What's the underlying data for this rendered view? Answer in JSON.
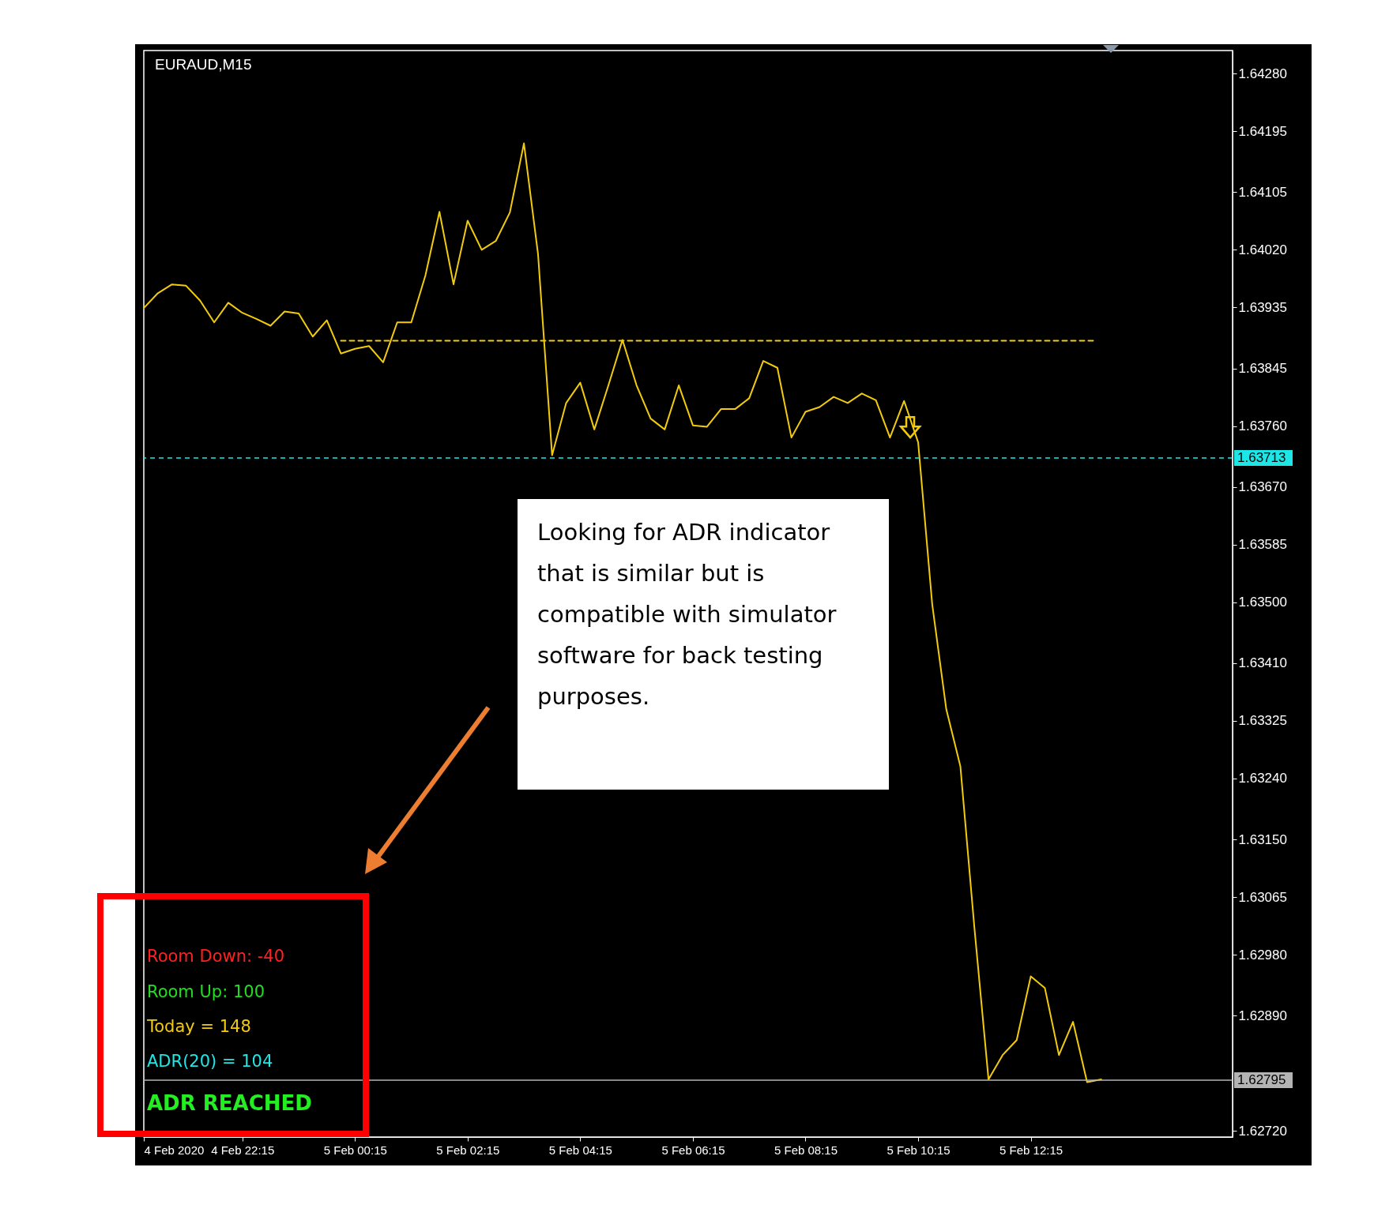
{
  "chart_data": {
    "type": "line",
    "title": "EURAUD,M15",
    "xlim": [
      "2020-02-04T20:30",
      "2020-02-05T15:50"
    ],
    "xticks": [
      {
        "value": "2020-02-04T20:30",
        "label": "4 Feb 2020"
      },
      {
        "value": "2020-02-04T22:15",
        "label": "4 Feb 22:15"
      },
      {
        "value": "2020-02-05T00:15",
        "label": "5 Feb 00:15"
      },
      {
        "value": "2020-02-05T02:15",
        "label": "5 Feb 02:15"
      },
      {
        "value": "2020-02-05T04:15",
        "label": "5 Feb 04:15"
      },
      {
        "value": "2020-02-05T06:15",
        "label": "5 Feb 06:15"
      },
      {
        "value": "2020-02-05T08:15",
        "label": "5 Feb 08:15"
      },
      {
        "value": "2020-02-05T10:15",
        "label": "5 Feb 10:15"
      },
      {
        "value": "2020-02-05T12:15",
        "label": "5 Feb 12:15"
      }
    ],
    "ylim": [
      1.62711,
      1.64314
    ],
    "yticks": [
      {
        "value": 1.6428,
        "label": "1.64280"
      },
      {
        "value": 1.64195,
        "label": "1.64195"
      },
      {
        "value": 1.64105,
        "label": "1.64105"
      },
      {
        "value": 1.6402,
        "label": "1.64020"
      },
      {
        "value": 1.63935,
        "label": "1.63935"
      },
      {
        "value": 1.63845,
        "label": "1.63845"
      },
      {
        "value": 1.6376,
        "label": "1.63760"
      },
      {
        "value": 1.6367,
        "label": "1.63670"
      },
      {
        "value": 1.63585,
        "label": "1.63585"
      },
      {
        "value": 1.635,
        "label": "1.63500"
      },
      {
        "value": 1.6341,
        "label": "1.63410"
      },
      {
        "value": 1.63325,
        "label": "1.63325"
      },
      {
        "value": 1.6324,
        "label": "1.63240"
      },
      {
        "value": 1.6315,
        "label": "1.63150"
      },
      {
        "value": 1.63065,
        "label": "1.63065"
      },
      {
        "value": 1.6298,
        "label": "1.62980"
      },
      {
        "value": 1.6289,
        "label": "1.62890"
      },
      {
        "value": 1.6272,
        "label": "1.62720"
      }
    ],
    "series": [
      {
        "color": "#f2cc0c",
        "x": [
          "2020-02-04T20:30",
          "2020-02-04T20:45",
          "2020-02-04T21:00",
          "2020-02-04T21:15",
          "2020-02-04T21:30",
          "2020-02-04T21:45",
          "2020-02-04T22:00",
          "2020-02-04T22:15",
          "2020-02-04T22:30",
          "2020-02-04T22:45",
          "2020-02-04T23:00",
          "2020-02-04T23:15",
          "2020-02-04T23:30",
          "2020-02-04T23:45",
          "2020-02-05T00:00",
          "2020-02-05T00:15",
          "2020-02-05T00:30",
          "2020-02-05T00:45",
          "2020-02-05T01:00",
          "2020-02-05T01:15",
          "2020-02-05T01:30",
          "2020-02-05T01:45",
          "2020-02-05T02:00",
          "2020-02-05T02:15",
          "2020-02-05T02:30",
          "2020-02-05T02:45",
          "2020-02-05T03:00",
          "2020-02-05T03:15",
          "2020-02-05T03:30",
          "2020-02-05T03:45",
          "2020-02-05T04:00",
          "2020-02-05T04:15",
          "2020-02-05T04:30",
          "2020-02-05T04:45",
          "2020-02-05T05:00",
          "2020-02-05T05:15",
          "2020-02-05T05:30",
          "2020-02-05T05:45",
          "2020-02-05T06:00",
          "2020-02-05T06:15",
          "2020-02-05T06:30",
          "2020-02-05T06:45",
          "2020-02-05T07:00",
          "2020-02-05T07:15",
          "2020-02-05T07:30",
          "2020-02-05T07:45",
          "2020-02-05T08:00",
          "2020-02-05T08:15",
          "2020-02-05T08:30",
          "2020-02-05T08:45",
          "2020-02-05T09:00",
          "2020-02-05T09:15",
          "2020-02-05T09:30",
          "2020-02-05T09:45",
          "2020-02-05T10:00",
          "2020-02-05T10:15",
          "2020-02-05T10:30",
          "2020-02-05T10:45",
          "2020-02-05T11:00",
          "2020-02-05T11:15",
          "2020-02-05T11:30",
          "2020-02-05T11:45",
          "2020-02-05T12:00",
          "2020-02-05T12:15",
          "2020-02-05T12:30",
          "2020-02-05T12:45",
          "2020-02-05T13:00",
          "2020-02-05T13:15",
          "2020-02-05T13:30"
        ],
        "values": [
          1.63934,
          1.63956,
          1.63969,
          1.63967,
          1.63945,
          1.63913,
          1.63942,
          1.63927,
          1.63918,
          1.63908,
          1.63929,
          1.63926,
          1.63892,
          1.63916,
          1.63867,
          1.63874,
          1.63878,
          1.63854,
          1.63913,
          1.63913,
          1.63982,
          1.64076,
          1.63969,
          1.64063,
          1.6402,
          1.64033,
          1.64075,
          1.64177,
          1.64014,
          1.63717,
          1.63794,
          1.63824,
          1.63755,
          1.6382,
          1.63887,
          1.6382,
          1.63771,
          1.63755,
          1.6382,
          1.63761,
          1.63759,
          1.63785,
          1.63785,
          1.63801,
          1.63856,
          1.63846,
          1.63743,
          1.63781,
          1.63788,
          1.63803,
          1.63794,
          1.63808,
          1.63798,
          1.63743,
          1.63797,
          1.63736,
          1.63497,
          1.63342,
          1.63258,
          1.63019,
          1.62796,
          1.62832,
          1.62854,
          1.62948,
          1.62931,
          1.62832,
          1.62881,
          1.62792,
          1.62796
        ]
      },
      {
        "type": "line",
        "line_style": "dashed",
        "color": "#f2cc0c",
        "x": [
          "2020-02-05T00:00",
          "2020-02-05T13:25"
        ],
        "values": [
          1.63886,
          1.63886
        ]
      }
    ],
    "ref_lines": [
      {
        "axis": "y",
        "value": 1.63713,
        "label": "1.63713",
        "color": "#1ee6e6",
        "line_style": "dashed"
      },
      {
        "axis": "y",
        "value": 1.62795,
        "label": "1.62795",
        "color": "#b4b4b4",
        "line_style": "solid"
      }
    ],
    "annotations": [
      "Room Down: -40",
      "Room Up: 100",
      "Today = 148",
      "ADR(20) = 104",
      "ADR REACHED",
      "Looking for ADR indicator that is similar but is compatible with simulator software for back testing purposes."
    ]
  }
}
